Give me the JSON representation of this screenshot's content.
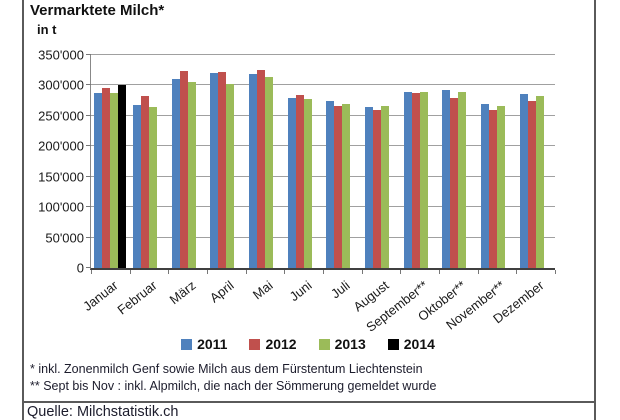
{
  "title": "Vermarktete Milch*",
  "unit_label": "in t",
  "footnotes": [
    "* inkl. Zonenmilch Genf sowie Milch aus dem Fürstentum Liechtenstein",
    "** Sept bis Nov : inkl. Alpmilch, die nach der Sömmerung gemeldet wurde"
  ],
  "source": "Quelle: Milchstatistik.ch",
  "chart_data": {
    "type": "bar",
    "title": "Vermarktete Milch*",
    "ylabel": "in t",
    "ylim": [
      0,
      350000
    ],
    "ytick_step": 50000,
    "ytick_labels": [
      "0",
      "50'000",
      "100'000",
      "150'000",
      "200'000",
      "250'000",
      "300'000",
      "350'000"
    ],
    "grid": true,
    "legend_position": "bottom",
    "categories": [
      "Januar",
      "Februar",
      "März",
      "April",
      "Mai",
      "Juni",
      "Juli",
      "August",
      "September**",
      "Oktober**",
      "November**",
      "Dezember"
    ],
    "series": [
      {
        "name": "2011",
        "color": "#4F81BD",
        "values": [
          288000,
          268000,
          310000,
          321000,
          318000,
          280000,
          275000,
          265000,
          290000,
          292000,
          269000,
          286000
        ]
      },
      {
        "name": "2012",
        "color": "#C0504D",
        "values": [
          296000,
          283000,
          323000,
          322000,
          326000,
          285000,
          266000,
          260000,
          287000,
          279000,
          259000,
          274000
        ]
      },
      {
        "name": "2013",
        "color": "#9BBB59",
        "values": [
          287000,
          265000,
          305000,
          303000,
          314000,
          277000,
          269000,
          266000,
          290000,
          290000,
          267000,
          283000
        ]
      },
      {
        "name": "2014",
        "color": "#000000",
        "values": [
          300000,
          null,
          null,
          null,
          null,
          null,
          null,
          null,
          null,
          null,
          null,
          null
        ]
      }
    ]
  }
}
